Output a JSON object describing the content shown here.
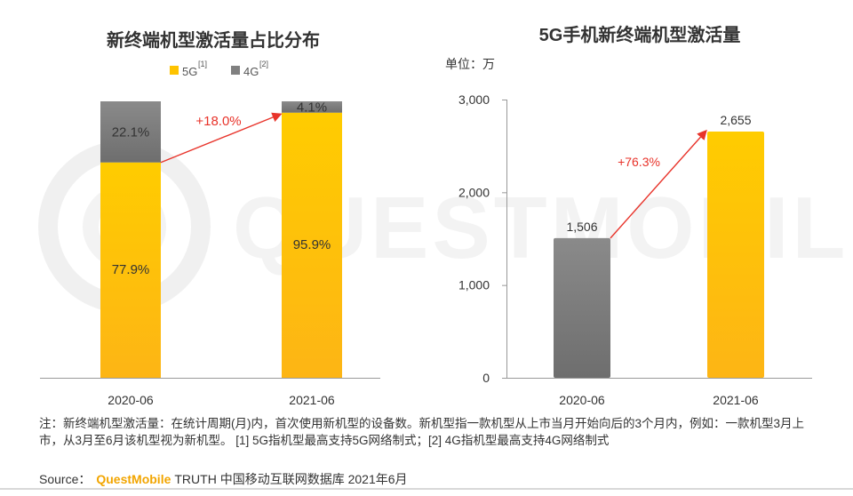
{
  "colors": {
    "accent_5g": "#fec300",
    "accent_4g": "#808080",
    "arrow": "#e8332a",
    "growth_text": "#e8332a",
    "brand": "#f2a500"
  },
  "chart_data": [
    {
      "type": "bar",
      "stacked": true,
      "title": "新终端机型激活量占比分布",
      "categories": [
        "2020-06",
        "2021-06"
      ],
      "series": [
        {
          "name": "5G",
          "legend_label": "5G",
          "note_ref": "[1]",
          "values": [
            77.9,
            95.9
          ],
          "labels": [
            "77.9%",
            "95.9%"
          ]
        },
        {
          "name": "4G",
          "legend_label": "4G",
          "note_ref": "[2]",
          "values": [
            22.1,
            4.1
          ],
          "labels": [
            "22.1%",
            "4.1%"
          ]
        }
      ],
      "ylim": [
        0,
        100
      ],
      "annotation": "+18.0%"
    },
    {
      "type": "bar",
      "title": "5G手机新终端机型激活量",
      "unit_label": "单位：万",
      "categories": [
        "2020-06",
        "2021-06"
      ],
      "values": [
        1506,
        2655
      ],
      "value_labels": [
        "1,506",
        "2,655"
      ],
      "ylim": [
        0,
        3000
      ],
      "yticks": [
        0,
        1000,
        2000,
        3000
      ],
      "ytick_labels": [
        "0",
        "1,000",
        "2,000",
        "3,000"
      ],
      "annotation": "+76.3%"
    }
  ],
  "watermark_text": "QUESTMOBILE",
  "footnote": {
    "text": "注：新终端机型激活量：在统计周期(月)内，首次使用新机型的设备数。新机型指一款机型从上市当月开始向后的3个月内，例如：一款机型3月上市，从3月至6月该机型视为新机型。  [1] 5G指机型最高支持5G网络制式；[2] 4G指机型最高支持4G网络制式"
  },
  "source": {
    "label": "Source：",
    "brand": "QuestMobile",
    "rest": "TRUTH 中国移动互联网数据库 2021年6月"
  }
}
